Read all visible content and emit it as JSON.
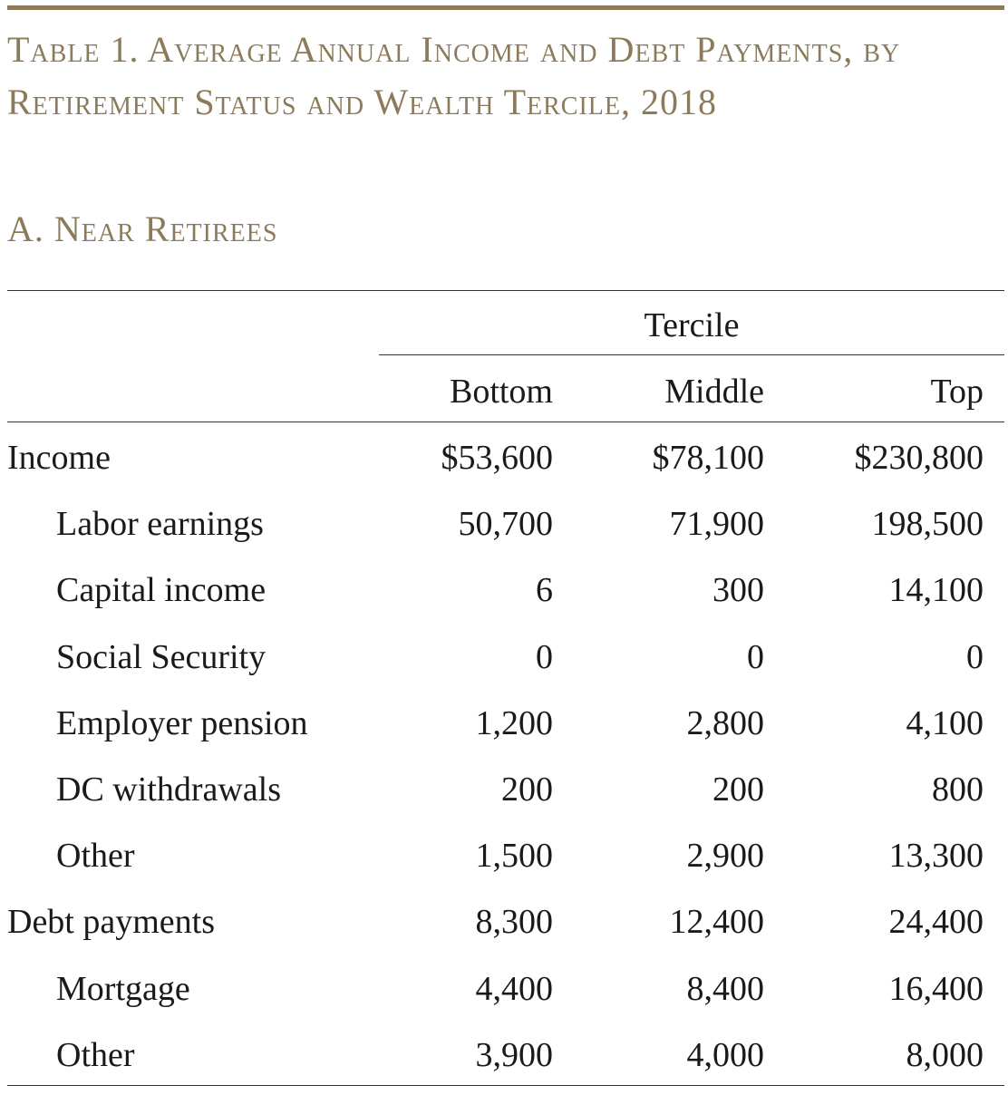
{
  "title": "Table 1. Average Annual Income and Debt Payments, by Retirement Status and Wealth Tercile, 2018",
  "panel": "A. Near Retirees",
  "header": {
    "group": "Tercile",
    "columns": [
      "Bottom",
      "Middle",
      "Top"
    ]
  },
  "rows": [
    {
      "label": "Income",
      "values": [
        "$53,600",
        "$78,100",
        "$230,800"
      ]
    },
    {
      "label": "Labor earnings",
      "values": [
        "50,700",
        "71,900",
        "198,500"
      ]
    },
    {
      "label": "Capital income",
      "values": [
        "6",
        "300",
        "14,100"
      ]
    },
    {
      "label": "Social Security",
      "values": [
        "0",
        "0",
        "0"
      ]
    },
    {
      "label": "Employer pension",
      "values": [
        "1,200",
        "2,800",
        "4,100"
      ]
    },
    {
      "label": "DC withdrawals",
      "values": [
        "200",
        "200",
        "800"
      ]
    },
    {
      "label": "Other",
      "values": [
        "1,500",
        "2,900",
        "13,300"
      ]
    },
    {
      "label": "Debt payments",
      "values": [
        "8,300",
        "12,400",
        "24,400"
      ]
    },
    {
      "label": "Mortgage",
      "values": [
        "4,400",
        "8,400",
        "16,400"
      ]
    },
    {
      "label": "Other",
      "values": [
        "3,900",
        "4,000",
        "8,000"
      ]
    }
  ],
  "colors": {
    "accent": "#8b7b5b",
    "text": "#1a1a1a"
  }
}
